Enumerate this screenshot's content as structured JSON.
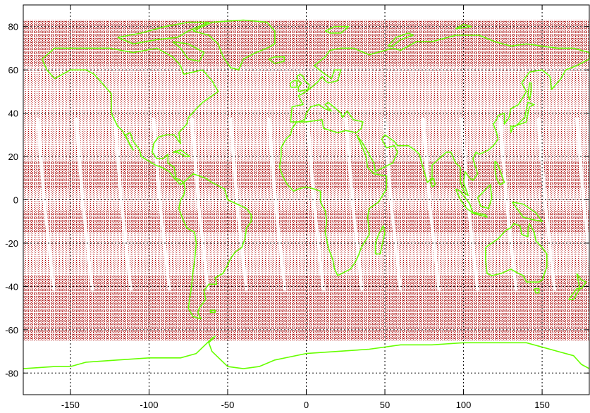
{
  "map": {
    "type": "equirectangular-plot",
    "xlim": [
      -180,
      180
    ],
    "ylim": [
      -90,
      90
    ],
    "xticks": [
      -150,
      -100,
      -50,
      0,
      50,
      100,
      150
    ],
    "yticks": [
      80,
      60,
      40,
      20,
      0,
      -20,
      -40,
      -60,
      -80
    ],
    "xtick_labels": [
      "-150",
      "-100",
      "-50",
      "0",
      "50",
      "100",
      "150"
    ],
    "ytick_labels": [
      "80",
      "60",
      "40",
      "20",
      "0",
      "-20",
      "-40",
      "-60",
      "-80"
    ],
    "grid": true,
    "grid_style": "dotted",
    "coverage_lat_range": [
      -65,
      83
    ],
    "colors": {
      "coverage_points": "#b00000",
      "coastline": "#66ff00",
      "grid": "#000000",
      "frame": "#000000",
      "background": "#ffffff"
    }
  }
}
